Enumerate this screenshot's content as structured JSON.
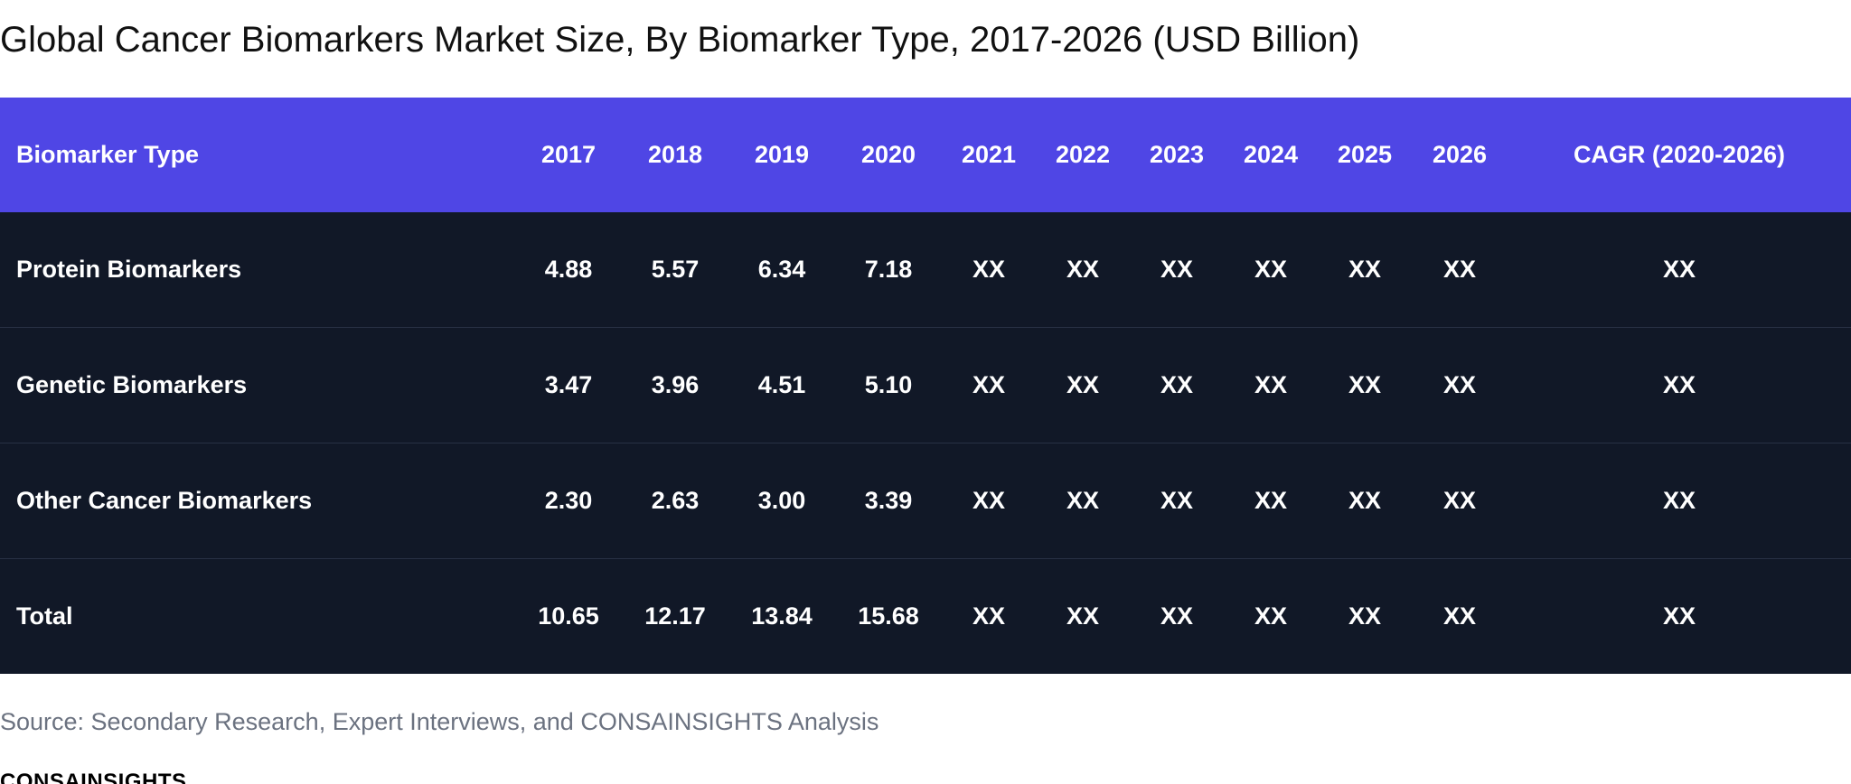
{
  "chart_data": {
    "type": "table",
    "title": "Global Cancer Biomarkers Market Size, By Biomarker Type, 2017-2026 (USD Billion)",
    "columns": [
      "Biomarker Type",
      "2017",
      "2018",
      "2019",
      "2020",
      "2021",
      "2022",
      "2023",
      "2024",
      "2025",
      "2026",
      "CAGR (2020-2026)"
    ],
    "rows": [
      {
        "label": "Protein Biomarkers",
        "values": [
          "4.88",
          "5.57",
          "6.34",
          "7.18",
          "XX",
          "XX",
          "XX",
          "XX",
          "XX",
          "XX",
          "XX"
        ]
      },
      {
        "label": "Genetic Biomarkers",
        "values": [
          "3.47",
          "3.96",
          "4.51",
          "5.10",
          "XX",
          "XX",
          "XX",
          "XX",
          "XX",
          "XX",
          "XX"
        ]
      },
      {
        "label": "Other Cancer Biomarkers",
        "values": [
          "2.30",
          "2.63",
          "3.00",
          "3.39",
          "XX",
          "XX",
          "XX",
          "XX",
          "XX",
          "XX",
          "XX"
        ]
      },
      {
        "label": "Total",
        "values": [
          "10.65",
          "12.17",
          "13.84",
          "15.68",
          "XX",
          "XX",
          "XX",
          "XX",
          "XX",
          "XX",
          "XX"
        ]
      }
    ],
    "colors": {
      "header_bg": "#4f46e5",
      "body_bg": "#111827",
      "text": "#ffffff"
    }
  },
  "source": "Source: Secondary Research, Expert Interviews, and CONSAINSIGHTS Analysis",
  "brand": "CONSAINSIGHTS"
}
